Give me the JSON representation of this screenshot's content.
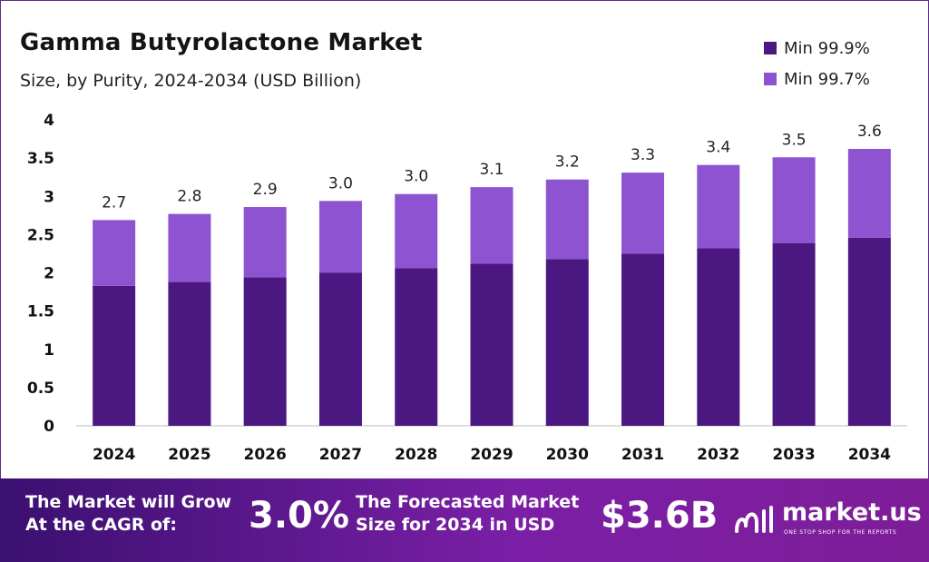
{
  "colors": {
    "series_min999": "#4b1780",
    "series_min997": "#8e53d1",
    "axis": "#bdbdbd"
  },
  "footer": {
    "cagr_label_line1": "The Market will Grow",
    "cagr_label_line2": "At the CAGR of:",
    "cagr_value": "3.0%",
    "forecast_label_line1": "The Forecasted Market",
    "forecast_label_line2": "Size for 2034 in USD",
    "forecast_value": "$3.6B",
    "brand_name": "market.us",
    "brand_tagline": "ONE STOP SHOP FOR THE REPORTS"
  },
  "chart_data": {
    "type": "bar",
    "stacked": true,
    "title": "Gamma Butyrolactone Market",
    "subtitle": "Size, by Purity, 2024-2034 (USD Billion)",
    "xlabel": "",
    "ylabel": "",
    "ylim": [
      0,
      4
    ],
    "yticks": [
      "0",
      "0.5",
      "1",
      "1.5",
      "2",
      "2.5",
      "3",
      "3.5",
      "4"
    ],
    "categories": [
      "2024",
      "2025",
      "2026",
      "2027",
      "2028",
      "2029",
      "2030",
      "2031",
      "2032",
      "2033",
      "2034"
    ],
    "series": [
      {
        "name": "Min 99.9%",
        "values": [
          1.83,
          1.88,
          1.94,
          2.0,
          2.06,
          2.12,
          2.18,
          2.25,
          2.32,
          2.39,
          2.46
        ]
      },
      {
        "name": "Min 99.7%",
        "values": [
          0.86,
          0.89,
          0.92,
          0.94,
          0.97,
          1.0,
          1.04,
          1.06,
          1.09,
          1.12,
          1.16
        ]
      }
    ],
    "total_labels": [
      "2.7",
      "2.8",
      "2.9",
      "3.0",
      "3.0",
      "3.1",
      "3.2",
      "3.3",
      "3.4",
      "3.5",
      "3.6"
    ],
    "legend_position": "top-right"
  }
}
